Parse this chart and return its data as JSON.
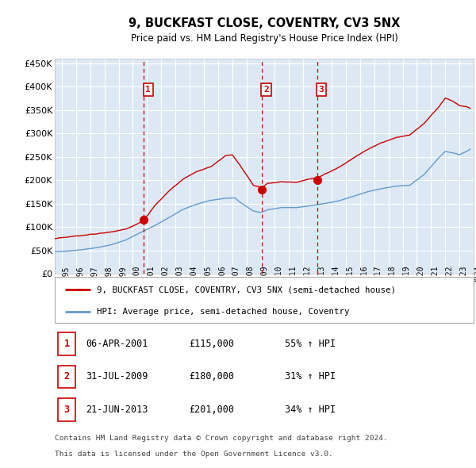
{
  "title": "9, BUCKFAST CLOSE, COVENTRY, CV3 5NX",
  "subtitle": "Price paid vs. HM Land Registry's House Price Index (HPI)",
  "legend_label_red": "9, BUCKFAST CLOSE, COVENTRY, CV3 5NX (semi-detached house)",
  "legend_label_blue": "HPI: Average price, semi-detached house, Coventry",
  "footer_line1": "Contains HM Land Registry data © Crown copyright and database right 2024.",
  "footer_line2": "This data is licensed under the Open Government Licence v3.0.",
  "table_rows": [
    [
      "1",
      "06-APR-2001",
      "£115,000",
      "55% ↑ HPI"
    ],
    [
      "2",
      "31-JUL-2009",
      "£180,000",
      "31% ↑ HPI"
    ],
    [
      "3",
      "21-JUN-2013",
      "£201,000",
      "34% ↑ HPI"
    ]
  ],
  "vline_x": [
    2001.27,
    2009.58,
    2013.47
  ],
  "sale_prices": [
    115000,
    180000,
    201000
  ],
  "sale_labels": [
    "1",
    "2",
    "3"
  ],
  "ylim": [
    0,
    460000
  ],
  "yticks": [
    0,
    50000,
    100000,
    150000,
    200000,
    250000,
    300000,
    350000,
    400000,
    450000
  ],
  "xlim_start": 1995.0,
  "xlim_end": 2024.5,
  "background_color": "#dce9f5",
  "red_color": "#cc0000",
  "blue_color": "#6699cc",
  "grid_color": "#ffffff",
  "red_points_x": [
    1995.0,
    1996.0,
    1997.0,
    1998.0,
    1999.0,
    2000.0,
    2001.0,
    2001.27,
    2002.0,
    2003.0,
    2004.0,
    2005.0,
    2006.0,
    2007.0,
    2007.5,
    2008.0,
    2009.0,
    2009.58,
    2010.0,
    2011.0,
    2012.0,
    2013.0,
    2013.47,
    2014.0,
    2015.0,
    2016.0,
    2017.0,
    2018.0,
    2019.0,
    2020.0,
    2021.0,
    2022.0,
    2022.5,
    2023.0,
    2023.5,
    2024.0,
    2024.25
  ],
  "red_points_y": [
    75000,
    77000,
    80000,
    83000,
    88000,
    95000,
    110000,
    115000,
    145000,
    175000,
    200000,
    215000,
    225000,
    248000,
    250000,
    230000,
    185000,
    180000,
    190000,
    195000,
    192000,
    200000,
    201000,
    210000,
    225000,
    245000,
    265000,
    280000,
    290000,
    295000,
    320000,
    355000,
    375000,
    370000,
    360000,
    358000,
    355000
  ],
  "blue_points_x": [
    1995.0,
    1996.0,
    1997.0,
    1998.0,
    1999.0,
    2000.0,
    2001.0,
    2002.0,
    2003.0,
    2004.0,
    2005.0,
    2006.0,
    2007.0,
    2007.7,
    2008.0,
    2009.0,
    2009.5,
    2010.0,
    2011.0,
    2012.0,
    2013.0,
    2014.0,
    2015.0,
    2016.0,
    2017.0,
    2018.0,
    2019.0,
    2020.0,
    2021.0,
    2022.0,
    2022.5,
    2023.0,
    2023.5,
    2024.0,
    2024.25
  ],
  "blue_points_y": [
    47000,
    49000,
    52000,
    57000,
    63000,
    73000,
    88000,
    103000,
    120000,
    138000,
    150000,
    158000,
    162000,
    163000,
    155000,
    135000,
    132000,
    138000,
    143000,
    143000,
    147000,
    152000,
    158000,
    168000,
    178000,
    185000,
    190000,
    192000,
    215000,
    250000,
    265000,
    262000,
    258000,
    265000,
    270000
  ]
}
